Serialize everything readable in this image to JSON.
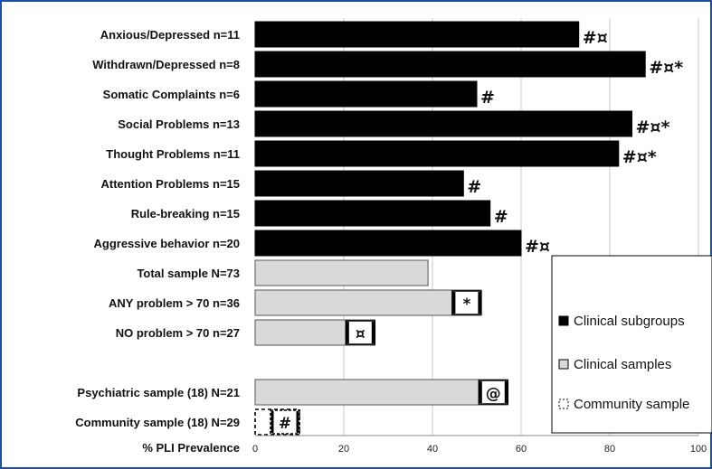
{
  "chart_data": {
    "type": "bar",
    "orientation": "horizontal",
    "xlabel": "% PLI Prevalence",
    "xlim": [
      0,
      100
    ],
    "xticks": [
      "0",
      "20",
      "40",
      "60",
      "80",
      "100"
    ],
    "grid": true,
    "legend_position": "right",
    "legend": [
      {
        "label": "Clinical subgroups",
        "style": "solid",
        "color": "#000000"
      },
      {
        "label": "Clinical samples",
        "style": "solid",
        "color": "#d9d9d9"
      },
      {
        "label": "Community sample",
        "style": "dashed",
        "color": "#ffffff"
      }
    ],
    "bars": [
      {
        "label": "Anxious/Depressed n=11",
        "value": 73,
        "group": "Clinical subgroups",
        "annotation": "#¤",
        "bracketed": false
      },
      {
        "label": "Withdrawn/Depressed n=8",
        "value": 88,
        "group": "Clinical subgroups",
        "annotation": "#¤*",
        "bracketed": false
      },
      {
        "label": "Somatic Complaints n=6",
        "value": 50,
        "group": "Clinical subgroups",
        "annotation": "#",
        "bracketed": false
      },
      {
        "label": "Social Problems n=13",
        "value": 85,
        "group": "Clinical subgroups",
        "annotation": "#¤*",
        "bracketed": false
      },
      {
        "label": "Thought Problems n=11",
        "value": 82,
        "group": "Clinical subgroups",
        "annotation": "#¤*",
        "bracketed": false
      },
      {
        "label": "Attention Problems n=15",
        "value": 47,
        "group": "Clinical subgroups",
        "annotation": "#",
        "bracketed": false
      },
      {
        "label": "Rule-breaking n=15",
        "value": 53,
        "group": "Clinical subgroups",
        "annotation": "#",
        "bracketed": false
      },
      {
        "label": "Aggressive behavior n=20",
        "value": 60,
        "group": "Clinical subgroups",
        "annotation": "#¤",
        "bracketed": false
      },
      {
        "label": "Total sample N=73",
        "value": 39,
        "group": "Clinical samples",
        "annotation": "",
        "bracketed": false
      },
      {
        "label": "ANY problem > 70 n=36",
        "value": 51,
        "group": "Clinical samples",
        "annotation": "*",
        "bracketed": true
      },
      {
        "label": "NO problem > 70 n=27",
        "value": 27,
        "group": "Clinical samples",
        "annotation": "¤",
        "bracketed": true
      },
      {
        "label": "",
        "value": null,
        "group": "",
        "annotation": "",
        "bracketed": false
      },
      {
        "label": "Psychiatric sample (18) N=21",
        "value": 57,
        "group": "Clinical samples",
        "annotation": "@",
        "bracketed": true
      },
      {
        "label": "Community sample (18) N=29",
        "value": 10,
        "group": "Community sample",
        "annotation": "#",
        "bracketed": true
      }
    ]
  }
}
